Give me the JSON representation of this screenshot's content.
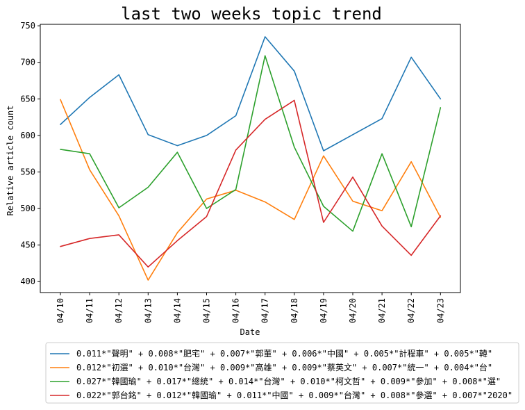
{
  "chart_data": {
    "type": "line",
    "title": "last two weeks topic trend",
    "xlabel": "Date",
    "ylabel": "Relative article count",
    "categories": [
      "04/10",
      "04/11",
      "04/12",
      "04/13",
      "04/14",
      "04/15",
      "04/16",
      "04/17",
      "04/18",
      "04/19",
      "04/20",
      "04/21",
      "04/22",
      "04/23"
    ],
    "yticks": [
      400,
      450,
      500,
      550,
      600,
      650,
      700,
      750
    ],
    "ylim": [
      385,
      752
    ],
    "grid": false,
    "legend_position": "bottom",
    "series": [
      {
        "name": "0.011*\"聲明\" + 0.008*\"肥宅\" + 0.007*\"郭董\" + 0.006*\"中國\" + 0.005*\"計程車\" + 0.005*\"韓\"",
        "color": "#1f77b4",
        "values": [
          615,
          652,
          683,
          601,
          586,
          600,
          627,
          735,
          688,
          579,
          601,
          623,
          707,
          650
        ]
      },
      {
        "name": "0.012*\"初選\" + 0.010*\"台灣\" + 0.009*\"高雄\" + 0.009*\"蔡英文\" + 0.007*\"統一\" + 0.004*\"台\"",
        "color": "#ff7f0e",
        "values": [
          649,
          553,
          490,
          402,
          467,
          513,
          525,
          509,
          485,
          572,
          510,
          497,
          564,
          488
        ]
      },
      {
        "name": "0.027*\"韓國瑜\" + 0.017*\"總統\" + 0.014*\"台灣\" + 0.010*\"柯文哲\" + 0.009*\"參加\" + 0.008*\"選\"",
        "color": "#2ca02c",
        "values": [
          581,
          575,
          501,
          529,
          577,
          500,
          526,
          709,
          584,
          503,
          469,
          575,
          475,
          638
        ]
      },
      {
        "name": "0.022*\"郭台銘\" + 0.012*\"韓國瑜\" + 0.011*\"中國\" + 0.009*\"台灣\" + 0.008*\"參選\" + 0.007*\"2020\"",
        "color": "#d62728",
        "values": [
          448,
          459,
          464,
          420,
          456,
          489,
          580,
          622,
          648,
          481,
          543,
          476,
          436,
          490
        ]
      }
    ]
  }
}
